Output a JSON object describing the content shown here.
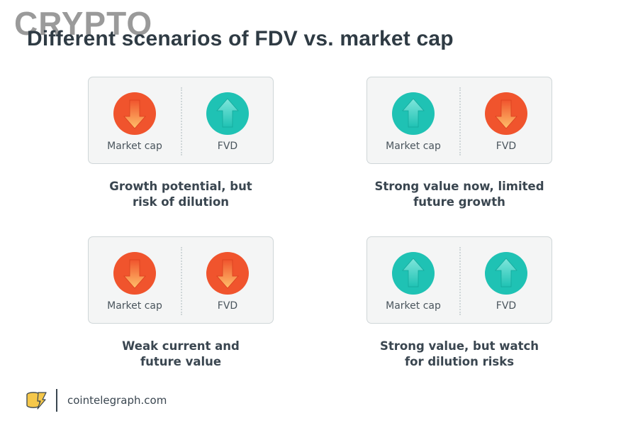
{
  "watermark": "CRYPTO",
  "title": "Different scenarios of FDV vs. market cap",
  "colors": {
    "up": "#1fc2b4",
    "down": "#f0542d",
    "card_bg": "#f4f5f5"
  },
  "scenarios": [
    {
      "left": {
        "label": "Market cap",
        "direction": "down"
      },
      "right": {
        "label": "FVD",
        "direction": "up"
      },
      "caption_line1": "Growth potential, but",
      "caption_line2": "risk of dilution"
    },
    {
      "left": {
        "label": "Market cap",
        "direction": "up"
      },
      "right": {
        "label": "FVD",
        "direction": "down"
      },
      "caption_line1": "Strong value now, limited",
      "caption_line2": "future growth"
    },
    {
      "left": {
        "label": "Market cap",
        "direction": "down"
      },
      "right": {
        "label": "FVD",
        "direction": "down"
      },
      "caption_line1": "Weak current and",
      "caption_line2": "future value"
    },
    {
      "left": {
        "label": "Market cap",
        "direction": "up"
      },
      "right": {
        "label": "FVD",
        "direction": "up"
      },
      "caption_line1": "Strong value, but watch",
      "caption_line2": "for dilution risks"
    }
  ],
  "footer": {
    "site": "cointelegraph.com",
    "logo_icon": "cointelegraph-logo-icon"
  }
}
